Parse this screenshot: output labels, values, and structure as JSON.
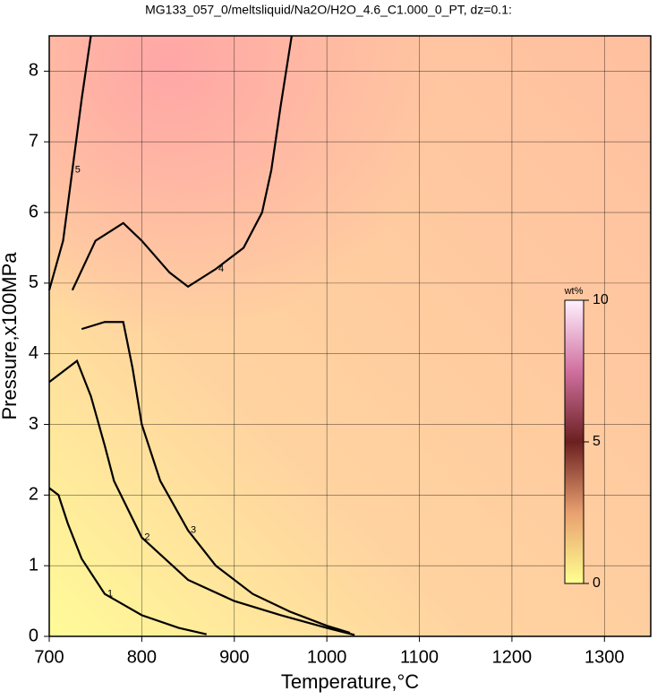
{
  "chart_data": {
    "type": "contour",
    "title": "MG133_057_0/meltsliquid/Na2O/H2O_4.6_C1.000_0_PT, dz=0.1:",
    "x_label": "Temperature,°C",
    "y_label": "Pressure,x100MPa",
    "xlim": [
      700,
      1350
    ],
    "xticks": [
      700,
      800,
      900,
      1000,
      1100,
      1200,
      1300
    ],
    "ylim": [
      0,
      8.5
    ],
    "yticks": [
      0,
      1,
      2,
      3,
      4,
      5,
      6,
      7,
      8
    ],
    "grid": true,
    "contours": [
      {
        "level": 1,
        "x": [
          700,
          710,
          720,
          735,
          760,
          800,
          840,
          870
        ],
        "y": [
          2.1,
          2.0,
          1.6,
          1.1,
          0.6,
          0.3,
          0.12,
          0.03
        ]
      },
      {
        "level": 2,
        "x": [
          700,
          720,
          730,
          745,
          760,
          770,
          800,
          850,
          900,
          950,
          1000,
          1030
        ],
        "y": [
          3.6,
          3.8,
          3.9,
          3.4,
          2.7,
          2.2,
          1.4,
          0.8,
          0.5,
          0.3,
          0.12,
          0.02
        ]
      },
      {
        "level": 3,
        "x": [
          735,
          760,
          780,
          790,
          800,
          820,
          850,
          880,
          920,
          960,
          1000,
          1025
        ],
        "y": [
          4.35,
          4.45,
          4.45,
          3.8,
          3.0,
          2.2,
          1.5,
          1.0,
          0.6,
          0.35,
          0.15,
          0.05
        ]
      },
      {
        "level": 4,
        "x": [
          725,
          750,
          780,
          800,
          830,
          850,
          880,
          910,
          930,
          940,
          950,
          962
        ],
        "y": [
          4.9,
          5.6,
          5.85,
          5.6,
          5.15,
          4.95,
          5.2,
          5.5,
          6.0,
          6.6,
          7.5,
          8.5
        ]
      },
      {
        "level": 5,
        "x": [
          700,
          715,
          725,
          735,
          745
        ],
        "y": [
          4.9,
          5.6,
          6.6,
          7.6,
          8.5
        ]
      }
    ],
    "colorbar": {
      "label": "wt%",
      "lim": [
        0,
        10
      ],
      "ticks": [
        0,
        5,
        10
      ]
    }
  }
}
